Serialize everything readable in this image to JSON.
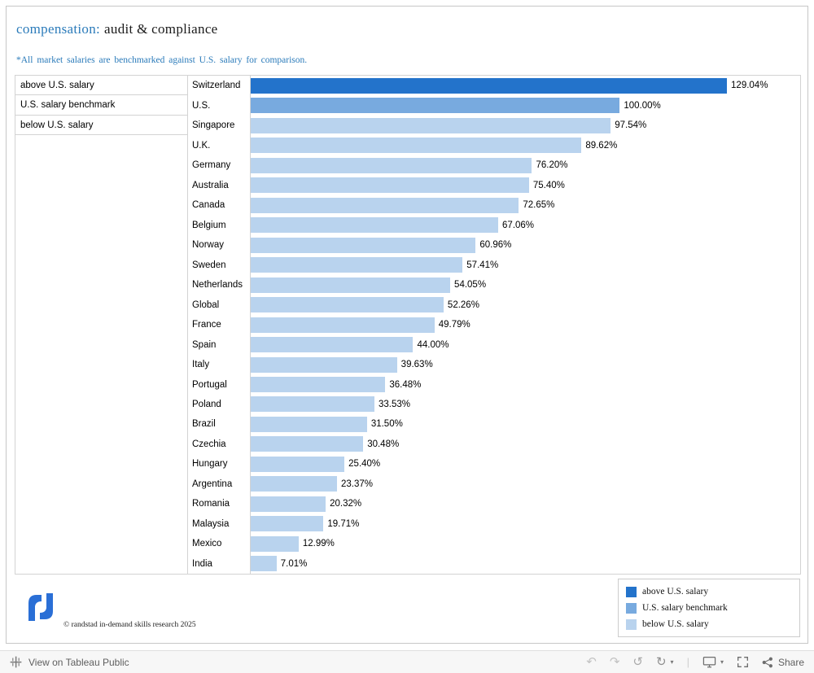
{
  "title": {
    "prefix": "compensation:",
    "rest": "audit & compliance"
  },
  "subtitle": "*All market salaries are benchmarked against U.S. salary for comparison.",
  "row_legend": {
    "items": [
      "above U.S. salary",
      "U.S. salary benchmark",
      "below U.S. salary"
    ]
  },
  "chart_data": {
    "type": "bar",
    "orientation": "horizontal",
    "title": "compensation: audit & compliance",
    "xlabel": "",
    "ylabel": "",
    "grid": false,
    "legend_position": "bottom-right",
    "xlim": [
      0,
      148
    ],
    "categories": [
      "Switzerland",
      "U.S.",
      "Singapore",
      "U.K.",
      "Germany",
      "Australia",
      "Canada",
      "Belgium",
      "Norway",
      "Sweden",
      "Netherlands",
      "Global",
      "France",
      "Spain",
      "Italy",
      "Portugal",
      "Poland",
      "Brazil",
      "Czechia",
      "Hungary",
      "Argentina",
      "Romania",
      "Malaysia",
      "Mexico",
      "India"
    ],
    "values": [
      129.04,
      100.0,
      97.54,
      89.62,
      76.2,
      75.4,
      72.65,
      67.06,
      60.96,
      57.41,
      54.05,
      52.26,
      49.79,
      44.0,
      39.63,
      36.48,
      33.53,
      31.5,
      30.48,
      25.4,
      23.37,
      20.32,
      19.71,
      12.99,
      7.01
    ],
    "value_labels": [
      "129.04%",
      "100.00%",
      "97.54%",
      "89.62%",
      "76.20%",
      "75.40%",
      "72.65%",
      "67.06%",
      "60.96%",
      "57.41%",
      "54.05%",
      "52.26%",
      "49.79%",
      "44.00%",
      "39.63%",
      "36.48%",
      "33.53%",
      "31.50%",
      "30.48%",
      "25.40%",
      "23.37%",
      "20.32%",
      "19.71%",
      "12.99%",
      "7.01%"
    ],
    "groups": [
      "above",
      "benchmark",
      "below",
      "below",
      "below",
      "below",
      "below",
      "below",
      "below",
      "below",
      "below",
      "below",
      "below",
      "below",
      "below",
      "below",
      "below",
      "below",
      "below",
      "below",
      "below",
      "below",
      "below",
      "below",
      "below"
    ],
    "group_colors": {
      "above": "#2373cb",
      "benchmark": "#78aadf",
      "below": "#b9d3ee"
    }
  },
  "legend": {
    "items": [
      {
        "label": "above U.S. salary",
        "color": "#2373cb"
      },
      {
        "label": "U.S. salary benchmark",
        "color": "#78aadf"
      },
      {
        "label": "below U.S. salary",
        "color": "#b9d3ee"
      }
    ]
  },
  "footer": {
    "copyright": "© randstad in-demand skills research 2025"
  },
  "colors": {
    "accent_blue": "#2b7bba",
    "logo_blue": "#2a6fd6"
  },
  "toolbar": {
    "view_label": "View on Tableau Public",
    "share_label": "Share"
  }
}
